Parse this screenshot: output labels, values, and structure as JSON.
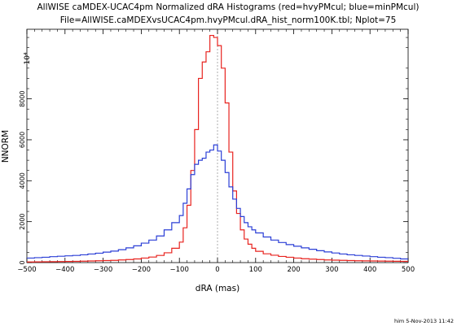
{
  "chart_data": {
    "type": "line",
    "title": "AllWISE caMDEX-UCAC4pm Normalized dRA Histograms (red=hvyPMcul; blue=minPMcul)",
    "subtitle": "File=AllWISE.caMDEXvsUCAC4pm.hvyPMcul.dRA_hist_norm100K.tbl; Nplot=75",
    "xlabel": "dRA (mas)",
    "ylabel": "NNORM",
    "ylabel_exponent": "10⁴",
    "xlim": [
      -500,
      500
    ],
    "ylim": [
      0,
      11400
    ],
    "x_ticks": [
      -500,
      -400,
      -300,
      -200,
      -100,
      0,
      100,
      200,
      300,
      400,
      500
    ],
    "y_ticks": [
      0,
      2000,
      4000,
      6000,
      8000
    ],
    "step": "histogram",
    "bin_edges": [
      -500,
      -480,
      -460,
      -440,
      -420,
      -400,
      -380,
      -360,
      -340,
      -320,
      -300,
      -280,
      -260,
      -240,
      -220,
      -200,
      -180,
      -160,
      -140,
      -120,
      -100,
      -90,
      -80,
      -70,
      -60,
      -50,
      -40,
      -30,
      -20,
      -10,
      0,
      10,
      20,
      30,
      40,
      50,
      60,
      70,
      80,
      90,
      100,
      120,
      140,
      160,
      180,
      200,
      220,
      240,
      260,
      280,
      300,
      320,
      340,
      360,
      380,
      400,
      420,
      440,
      460,
      480,
      500
    ],
    "series": [
      {
        "name": "hvyPMcul",
        "color": "#e8231f",
        "values": [
          30,
          35,
          40,
          45,
          50,
          55,
          60,
          70,
          80,
          90,
          100,
          110,
          130,
          150,
          180,
          220,
          270,
          350,
          480,
          700,
          1000,
          1700,
          2800,
          4500,
          6500,
          9000,
          9800,
          10300,
          11100,
          11000,
          10600,
          9500,
          7800,
          5400,
          3500,
          2400,
          1600,
          1150,
          900,
          700,
          550,
          430,
          360,
          300,
          260,
          220,
          190,
          170,
          150,
          130,
          120,
          110,
          100,
          90,
          85,
          80,
          75,
          70,
          65,
          60
        ]
      },
      {
        "name": "minPMcul",
        "color": "#2b3fd6",
        "values": [
          220,
          240,
          260,
          290,
          310,
          330,
          350,
          380,
          420,
          460,
          510,
          560,
          630,
          720,
          820,
          950,
          1100,
          1300,
          1600,
          1950,
          2300,
          2900,
          3600,
          4300,
          4800,
          5000,
          5100,
          5400,
          5500,
          5750,
          5450,
          5000,
          4400,
          3700,
          3100,
          2650,
          2250,
          1950,
          1750,
          1600,
          1450,
          1250,
          1100,
          980,
          880,
          800,
          720,
          650,
          580,
          520,
          470,
          420,
          380,
          350,
          320,
          290,
          260,
          240,
          210,
          180
        ]
      }
    ],
    "grid": false,
    "zero_line": true,
    "footer": "him  5-Nov-2013 11:42"
  }
}
